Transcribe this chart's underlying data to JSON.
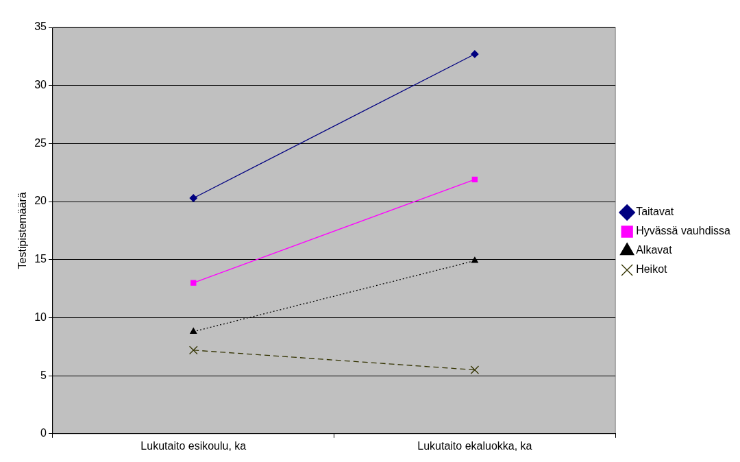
{
  "chart_data": {
    "type": "line",
    "categories": [
      "Lukutaito esikoulu, ka",
      "Lukutaito ekaluokka, ka"
    ],
    "ylabel": "Testipistemäärä",
    "ylim": [
      0,
      35
    ],
    "yticks": [
      0,
      5,
      10,
      15,
      20,
      25,
      30,
      35
    ],
    "grid": "y",
    "legend": "right",
    "series": [
      {
        "name": "Taitavat",
        "color": "#000080",
        "values": [
          20.3,
          32.7
        ],
        "marker": "diamond",
        "line_style": "solid"
      },
      {
        "name": "Hyvässä vauhdissa",
        "color": "#ff00ff",
        "values": [
          13.0,
          21.9
        ],
        "marker": "square",
        "line_style": "solid"
      },
      {
        "name": "Alkavat",
        "color": "#000000",
        "values": [
          8.8,
          14.9
        ],
        "marker": "triangle",
        "line_style": "dotted"
      },
      {
        "name": "Heikot",
        "color": "#333300",
        "values": [
          7.2,
          5.5
        ],
        "marker": "cross",
        "line_style": "dashed"
      }
    ]
  }
}
